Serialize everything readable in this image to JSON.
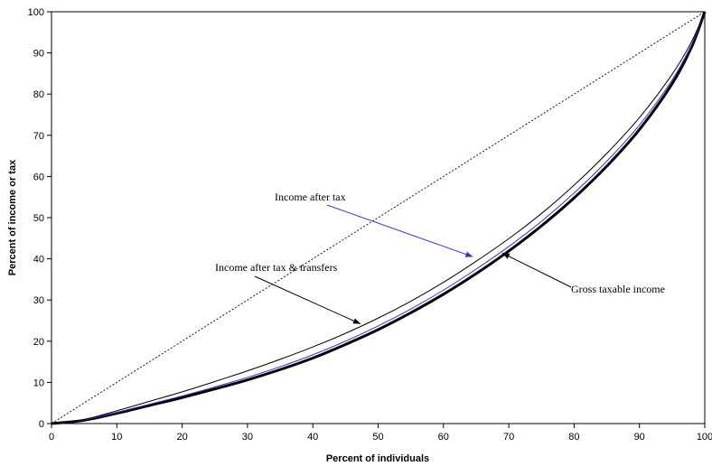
{
  "chart_data": {
    "type": "line",
    "title": "",
    "xlabel": "Percent of individuals",
    "ylabel": "Percent of income or tax",
    "xlim": [
      0,
      100
    ],
    "ylim": [
      0,
      100
    ],
    "x_ticks": [
      "0",
      "10",
      "20",
      "30",
      "40",
      "50",
      "60",
      "70",
      "80",
      "90",
      "100"
    ],
    "y_ticks": [
      "0",
      "10",
      "20",
      "30",
      "40",
      "50",
      "60",
      "70",
      "80",
      "90",
      "100"
    ],
    "grid": false,
    "legend": "none",
    "x": [
      0,
      5,
      10,
      15,
      20,
      25,
      30,
      35,
      40,
      45,
      50,
      55,
      60,
      65,
      70,
      75,
      80,
      85,
      90,
      95,
      98,
      100
    ],
    "series": [
      {
        "name": "",
        "color": "#000000",
        "style": "dashed",
        "values": [
          0,
          5,
          10,
          15,
          20,
          25,
          30,
          35,
          40,
          45,
          50,
          55,
          60,
          65,
          70,
          75,
          80,
          85,
          90,
          95,
          98,
          100
        ]
      },
      {
        "name": "Gross taxable income",
        "color": "#000000",
        "style": "thick",
        "values": [
          0,
          0.8,
          2.5,
          4.4,
          6.3,
          8.4,
          10.6,
          13.1,
          15.9,
          19.2,
          22.8,
          26.9,
          31.4,
          36.4,
          41.9,
          48.0,
          54.8,
          62.5,
          71.4,
          82.5,
          91.5,
          100
        ]
      },
      {
        "name": "Income after tax",
        "color": "#3333cc",
        "style": "thin",
        "values": [
          0,
          0.9,
          2.7,
          4.7,
          6.7,
          8.9,
          11.2,
          13.8,
          16.7,
          20.0,
          23.7,
          27.8,
          32.4,
          37.5,
          43.0,
          49.1,
          56.0,
          63.7,
          72.5,
          83.4,
          92.1,
          100
        ]
      },
      {
        "name": "Income after tax & transfers",
        "color": "#000000",
        "style": "thin",
        "values": [
          0,
          1.0,
          3.1,
          5.4,
          7.7,
          10.2,
          12.8,
          15.6,
          18.6,
          21.9,
          25.6,
          29.7,
          34.3,
          39.4,
          44.9,
          51.0,
          57.9,
          65.6,
          74.3,
          84.8,
          92.8,
          100
        ]
      }
    ],
    "annotations": [
      {
        "text": "Income after tax",
        "arrow_to": [
          64.5,
          40.5
        ],
        "color": "#3333cc"
      },
      {
        "text": "Income after tax & transfers",
        "arrow_to": [
          47.3,
          24.2
        ],
        "color": "#000000"
      },
      {
        "text": "Gross taxable income",
        "arrow_to": [
          69.0,
          41.4
        ],
        "color": "#000000"
      }
    ]
  }
}
